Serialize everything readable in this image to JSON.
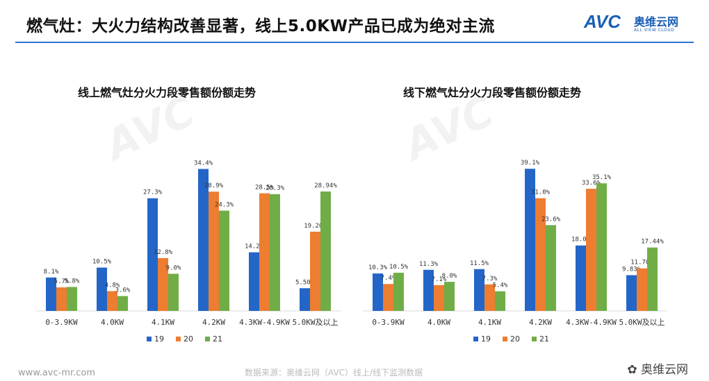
{
  "header": {
    "title": "燃气灶：大火力结构改善显著，线上5.0KW产品已成为绝对主流",
    "logo_text": "AVC",
    "logo_cn": "奥维云网",
    "logo_sub": "ALL VIEW CLOUD"
  },
  "footer": {
    "url": "www.avc-mr.com",
    "source": "数据来源：奥维云网（AVC）线上/线下监测数据",
    "wechat": "奥维云网"
  },
  "colors": {
    "s19": "#2466c8",
    "s20": "#ed7d31",
    "s21": "#70ad47"
  },
  "chart_data": [
    {
      "type": "bar",
      "title": "线上燃气灶分火力段零售额份额走势",
      "categories": [
        "0-3.9KW",
        "4.0KW",
        "4.1KW",
        "4.2KW",
        "4.3KW-4.9KW",
        "5.0KW及以上"
      ],
      "series": [
        {
          "name": "19",
          "values": [
            8.1,
            10.5,
            27.3,
            34.4,
            14.2,
            5.5
          ],
          "labels": [
            "8.1%",
            "10.5%",
            "27.3%",
            "34.4%",
            "14.2%",
            "5.50%"
          ]
        },
        {
          "name": "20",
          "values": [
            5.7,
            4.8,
            12.8,
            28.9,
            28.5,
            19.2
          ],
          "labels": [
            "5.7%",
            "4.8%",
            "12.8%",
            "28.9%",
            "28.5%",
            "19.20%"
          ]
        },
        {
          "name": "21",
          "values": [
            5.8,
            3.6,
            9.0,
            24.3,
            28.3,
            28.94
          ],
          "labels": [
            "5.8%",
            "3.6%",
            "9.0%",
            "24.3%",
            "28.3%",
            "28.94%"
          ]
        }
      ],
      "ylim": [
        0,
        37
      ]
    },
    {
      "type": "bar",
      "title": "线下燃气灶分火力段零售额份额走势",
      "categories": [
        "0-3.9KW",
        "4.0KW",
        "4.1KW",
        "4.2KW",
        "4.3KW-4.9KW",
        "5.0KW及以上"
      ],
      "series": [
        {
          "name": "19",
          "values": [
            10.3,
            11.3,
            11.5,
            39.1,
            18.0,
            9.83
          ],
          "labels": [
            "10.3%",
            "11.3%",
            "11.5%",
            "39.1%",
            "18.0%",
            "9.83%"
          ]
        },
        {
          "name": "20",
          "values": [
            7.4,
            7.1,
            7.3,
            31.0,
            33.6,
            11.7
          ],
          "labels": [
            "7.4%",
            "7.1%",
            "7.3%",
            "31.0%",
            "33.6%",
            "11.70%"
          ]
        },
        {
          "name": "21",
          "values": [
            10.5,
            8.0,
            5.4,
            23.6,
            35.1,
            17.44
          ],
          "labels": [
            "10.5%",
            "8.0%",
            "5.4%",
            "23.6%",
            "35.1%",
            "17.44%"
          ]
        }
      ],
      "ylim": [
        0,
        42
      ]
    }
  ]
}
